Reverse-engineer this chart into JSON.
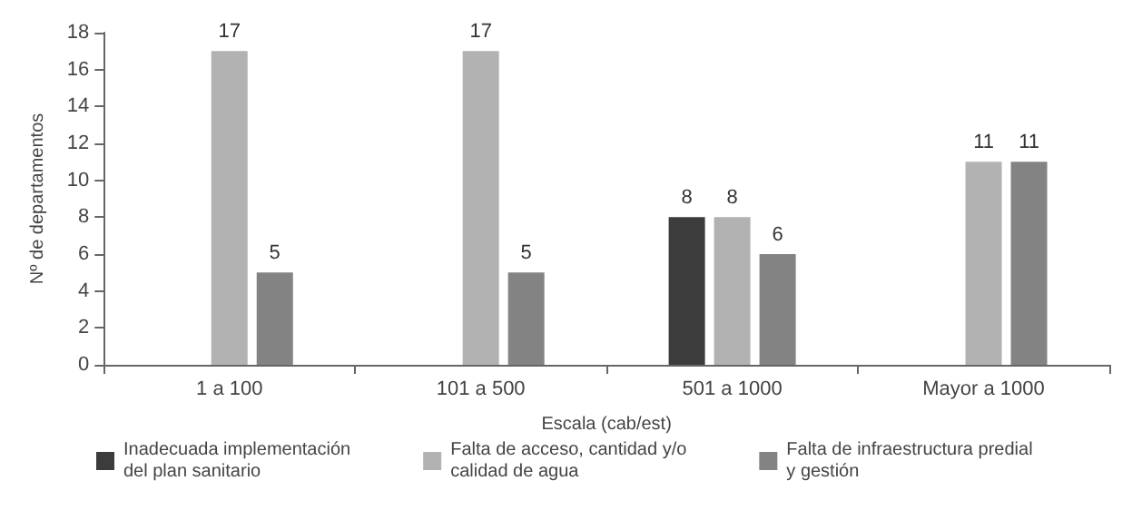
{
  "chart_data": {
    "type": "bar",
    "xlabel": "Escala (cab/est)",
    "ylabel": "Nº de departamentos",
    "categories": [
      "1 a 100",
      "101 a 500",
      "501 a 1000",
      "Mayor a 1000"
    ],
    "series": [
      {
        "name": "Inadecuada implementación\ndel plan sanitario",
        "color": "#3c3c3c",
        "values": [
          null,
          null,
          8,
          null
        ]
      },
      {
        "name": "Falta de acceso, cantidad y/o\ncalidad de agua",
        "color": "#b2b2b2",
        "values": [
          17,
          17,
          8,
          11
        ]
      },
      {
        "name": "Falta de infraestructura predial\ny gestión",
        "color": "#838383",
        "values": [
          5,
          5,
          6,
          11
        ]
      }
    ],
    "ylim": [
      0,
      18
    ],
    "yticks": [
      0,
      2,
      4,
      6,
      8,
      10,
      12,
      14,
      16,
      18
    ],
    "grid": false,
    "legend": "bottom",
    "data_labels": true
  }
}
